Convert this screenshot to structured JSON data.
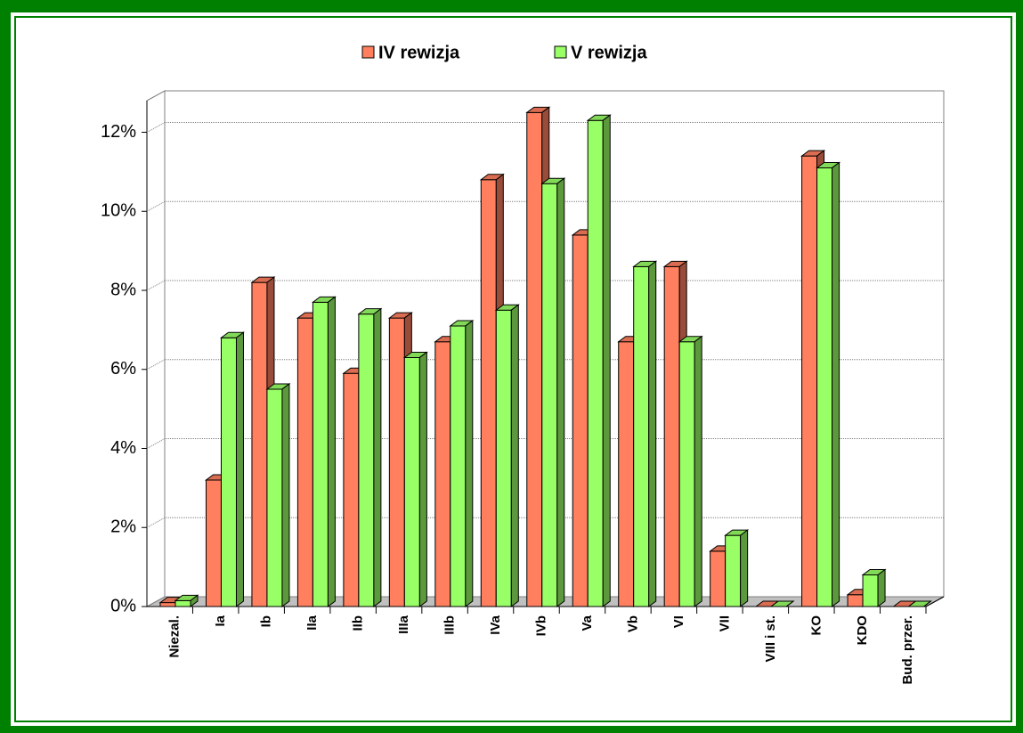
{
  "chart_data": {
    "type": "bar3d",
    "categories": [
      "Niezal.",
      "Ia",
      "Ib",
      "IIa",
      "IIb",
      "IIIa",
      "IIIb",
      "IVa",
      "IVb",
      "Va",
      "Vb",
      "VI",
      "VII",
      "VIII i st.",
      "KO",
      "KDO",
      "Bud. przer."
    ],
    "series": [
      {
        "name": "IV rewizja",
        "color": "#ff7f5f",
        "values": [
          0.1,
          3.2,
          8.2,
          7.3,
          5.9,
          7.3,
          6.7,
          10.8,
          12.5,
          9.4,
          6.7,
          8.6,
          1.4,
          0,
          11.4,
          0.3,
          0
        ]
      },
      {
        "name": "V rewizja",
        "color": "#99ff66",
        "values": [
          0.15,
          6.8,
          5.5,
          7.7,
          7.4,
          6.3,
          7.1,
          7.5,
          10.7,
          12.3,
          8.6,
          6.7,
          1.8,
          0,
          11.1,
          0.8,
          0
        ]
      }
    ],
    "ylim": [
      0,
      12.8
    ],
    "yticks": [
      {
        "value": 0,
        "label": "0%"
      },
      {
        "value": 2,
        "label": "2%"
      },
      {
        "value": 4,
        "label": "4%"
      },
      {
        "value": 6,
        "label": "6%"
      },
      {
        "value": 8,
        "label": "8%"
      },
      {
        "value": 10,
        "label": "10%"
      },
      {
        "value": 12,
        "label": "12%"
      }
    ],
    "grid": true,
    "legend": "top"
  }
}
